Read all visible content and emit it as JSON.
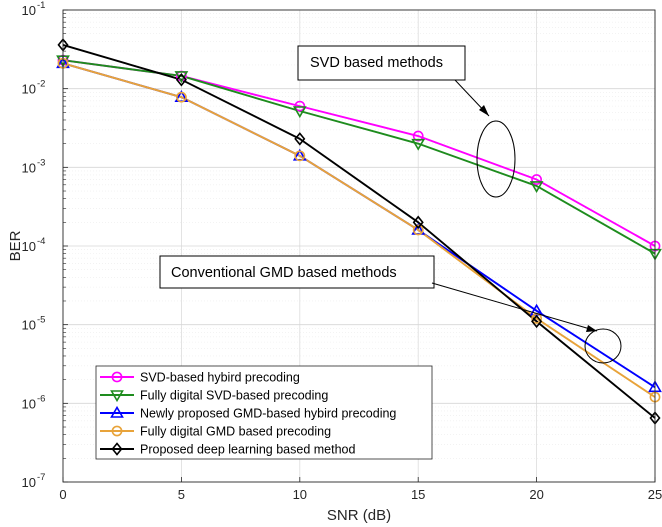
{
  "chart_data": {
    "type": "line",
    "xlabel": "SNR (dB)",
    "ylabel": "BER",
    "xlim": [
      0,
      25
    ],
    "ylim": [
      1e-07,
      0.1
    ],
    "yscale": "log",
    "grid": true,
    "legend_position": "bottom-left",
    "x": [
      0,
      5,
      10,
      15,
      20,
      25
    ],
    "x_ticks": [
      "0",
      "5",
      "10",
      "15",
      "20",
      "25"
    ],
    "y_tick_labels": [
      {
        "base": "10",
        "exp": "-7"
      },
      {
        "base": "10",
        "exp": "-6"
      },
      {
        "base": "10",
        "exp": "-5"
      },
      {
        "base": "10",
        "exp": "-4"
      },
      {
        "base": "10",
        "exp": "-3"
      },
      {
        "base": "10",
        "exp": "-2"
      },
      {
        "base": "10",
        "exp": "-1"
      }
    ],
    "series": [
      {
        "name": "SVD-based hybird precoding",
        "color": "#ff00ff",
        "marker": "circle",
        "values": [
          0.023,
          0.0145,
          0.006,
          0.0025,
          0.0007,
          0.0001
        ]
      },
      {
        "name": "Fully digital SVD-based precoding",
        "color": "#1e8c1e",
        "marker": "triangle-down",
        "values": [
          0.023,
          0.0145,
          0.0052,
          0.002,
          0.00058,
          8e-05
        ]
      },
      {
        "name": "Newly proposed GMD-based hybird precoding",
        "color": "#0000ff",
        "marker": "triangle-up",
        "values": [
          0.021,
          0.0078,
          0.0014,
          0.00016,
          1.5e-05,
          1.6e-06
        ]
      },
      {
        "name": "Fully digital GMD based precoding",
        "color": "#e8a33a",
        "marker": "circle",
        "values": [
          0.021,
          0.0078,
          0.0014,
          0.00016,
          1.2e-05,
          1.2e-06
        ]
      },
      {
        "name": "Proposed deep learning based method",
        "color": "#000000",
        "marker": "diamond",
        "values": [
          0.036,
          0.013,
          0.0023,
          0.0002,
          1.1e-05,
          6.5e-07
        ]
      }
    ],
    "annotations": [
      "SVD based methods",
      "Conventional GMD based methods"
    ]
  }
}
